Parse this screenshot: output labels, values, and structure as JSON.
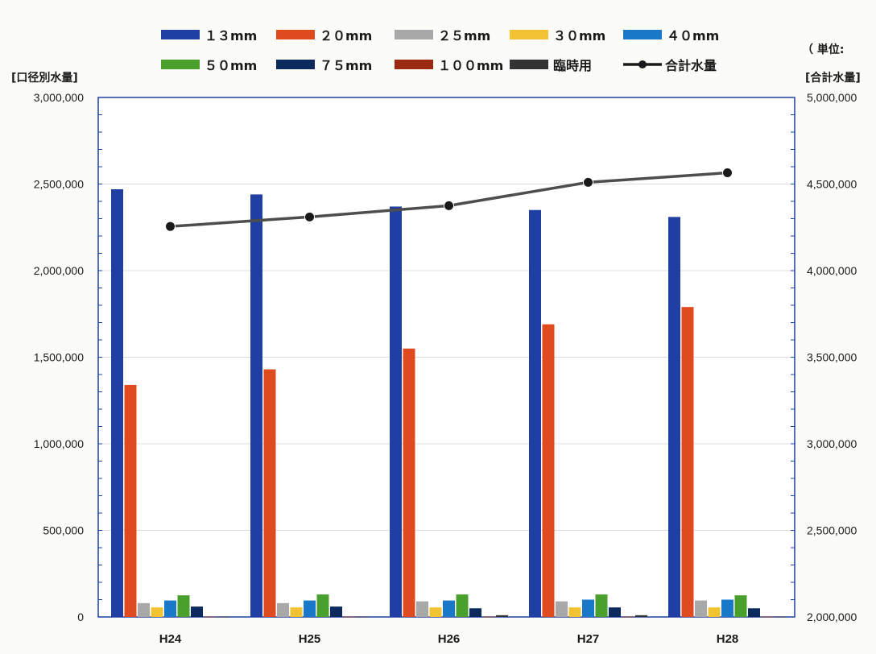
{
  "chart_data": {
    "type": "bar",
    "categories": [
      "H24",
      "H25",
      "H26",
      "H27",
      "H28"
    ],
    "series": [
      {
        "name": "１３mm",
        "color": "#1f3fa3",
        "values": [
          2470000,
          2440000,
          2370000,
          2350000,
          2310000
        ]
      },
      {
        "name": "２０mm",
        "color": "#e04a1f",
        "values": [
          1340000,
          1430000,
          1550000,
          1690000,
          1790000
        ]
      },
      {
        "name": "２５mm",
        "color": "#a8a8a8",
        "values": [
          80000,
          80000,
          90000,
          90000,
          95000
        ]
      },
      {
        "name": "３０mm",
        "color": "#f2c233",
        "values": [
          55000,
          55000,
          55000,
          55000,
          55000
        ]
      },
      {
        "name": "４０mm",
        "color": "#1a78c8",
        "values": [
          95000,
          95000,
          95000,
          100000,
          100000
        ]
      },
      {
        "name": "５０mm",
        "color": "#4aa02c",
        "values": [
          125000,
          130000,
          130000,
          130000,
          125000
        ]
      },
      {
        "name": "７５mm",
        "color": "#0d2a5e",
        "values": [
          60000,
          60000,
          50000,
          55000,
          50000
        ]
      },
      {
        "name": "１００mm",
        "color": "#9a2a12",
        "values": [
          2000,
          2000,
          2000,
          2000,
          2000
        ]
      },
      {
        "name": "臨時用",
        "color": "#333333",
        "values": [
          2000,
          2000,
          10000,
          10000,
          2000
        ]
      }
    ],
    "line_series": {
      "name": "合計水量",
      "color": "#4d4d4d",
      "axis": "right",
      "values": [
        4255000,
        4310000,
        4375000,
        4510000,
        4565000
      ]
    },
    "ylabel": "[口径別水量]",
    "y2label": "[合計水量]",
    "unit_label": "（ 単位:",
    "ylim": [
      0,
      3000000
    ],
    "y2lim": [
      2000000,
      5000000
    ],
    "yticks": [
      "3,000,000",
      "2,500,000",
      "2,000,000",
      "1,500,000",
      "1,000,000",
      "500,000",
      "0"
    ],
    "y2ticks": [
      "5,000,000",
      "4,500,000",
      "4,000,000",
      "3,500,000",
      "3,000,000",
      "2,500,000",
      "2,000,000"
    ],
    "grid": true,
    "legend_position": "top"
  }
}
